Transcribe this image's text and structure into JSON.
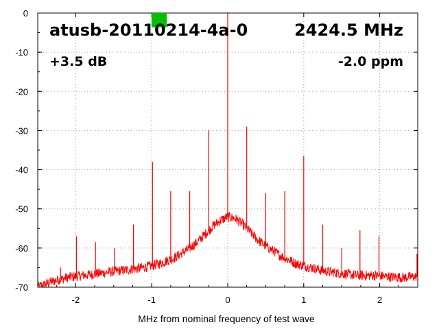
{
  "chart_data": {
    "type": "line",
    "title": "atusb-20110214-4a-0",
    "frequency": "2424.5 MHz",
    "gain": "+3.5 dB",
    "ppm": "-2.0 ppm",
    "xlabel": "MHz from nominal frequency of test wave",
    "ylabel": "",
    "xlim": [
      -2.5,
      2.5
    ],
    "ylim": [
      -70,
      0
    ],
    "x_ticks": [
      -2,
      -1,
      0,
      1,
      2
    ],
    "x_tick_labels": [
      "-2",
      "-1",
      "0",
      "1",
      "2"
    ],
    "y_ticks": [
      0,
      -10,
      -20,
      -30,
      -40,
      -50,
      -60,
      -70
    ],
    "y_tick_labels": [
      "0",
      "-10",
      "-20",
      "-30",
      "-40",
      "-50",
      "-60",
      "-70"
    ],
    "grid": true,
    "status_indicator_color": "#00c000",
    "series_color": "#ff0000",
    "series": [
      {
        "x": [
          -2.5,
          -2.3,
          -2.1,
          -1.9,
          -1.7,
          -1.5,
          -1.3,
          -1.1,
          -0.9,
          -0.7,
          -0.5,
          -0.4,
          -0.3,
          -0.2,
          -0.1,
          0.0,
          0.1,
          0.2,
          0.3,
          0.4,
          0.5,
          0.7,
          0.9,
          1.1,
          1.3,
          1.5,
          1.7,
          1.9,
          2.1,
          2.3,
          2.5
        ],
        "values": [
          -70,
          -68.5,
          -67.5,
          -67,
          -66.5,
          -66,
          -65.5,
          -65,
          -64,
          -62.5,
          -60,
          -58.5,
          -56.5,
          -54.5,
          -53,
          -52,
          -52.5,
          -54,
          -56,
          -58,
          -59.5,
          -62,
          -64,
          -65,
          -66,
          -66.5,
          -67,
          -67,
          -67.3,
          -67.5,
          -67.3
        ]
      }
    ],
    "spikes": [
      {
        "x": -2.2,
        "y": -65
      },
      {
        "x": -1.99,
        "y": -57
      },
      {
        "x": -1.74,
        "y": -58.5
      },
      {
        "x": -1.49,
        "y": -60
      },
      {
        "x": -1.24,
        "y": -54
      },
      {
        "x": -0.99,
        "y": -38
      },
      {
        "x": -0.75,
        "y": -45.5
      },
      {
        "x": -0.5,
        "y": -45.5
      },
      {
        "x": -0.25,
        "y": -30
      },
      {
        "x": 0.0,
        "y": 0
      },
      {
        "x": 0.25,
        "y": -29
      },
      {
        "x": 0.5,
        "y": -46
      },
      {
        "x": 0.75,
        "y": -45.5
      },
      {
        "x": 1.0,
        "y": -36.5
      },
      {
        "x": 1.25,
        "y": -54
      },
      {
        "x": 1.5,
        "y": -60
      },
      {
        "x": 1.74,
        "y": -55.5
      },
      {
        "x": 1.99,
        "y": -57
      },
      {
        "x": 2.49,
        "y": -61.5
      }
    ]
  }
}
